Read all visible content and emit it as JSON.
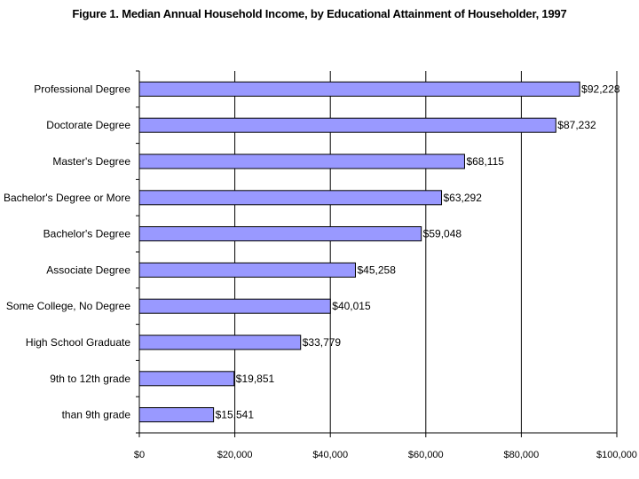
{
  "chart_data": {
    "type": "bar",
    "orientation": "horizontal",
    "title": "Figure 1. Median Annual Household Income, by Educational Attainment of Householder, 1997",
    "xlabel": "",
    "ylabel": "",
    "categories": [
      "Professional Degree",
      "Doctorate Degree",
      "Master's Degree",
      "Bachelor's Degree or More",
      "Bachelor's Degree",
      "Associate Degree",
      "Some College, No Degree",
      "High School Graduate",
      "9th to 12th grade",
      "than 9th grade"
    ],
    "values": [
      92228,
      87232,
      68115,
      63292,
      59048,
      45258,
      40015,
      33779,
      19851,
      15541
    ],
    "value_labels": [
      "$92,228",
      "$87,232",
      "$68,115",
      "$63,292",
      "$59,048",
      "$45,258",
      "$40,015",
      "$33,779",
      "$19,851",
      "$15,541"
    ],
    "xlim": [
      0,
      100000
    ],
    "x_ticks": [
      0,
      20000,
      40000,
      60000,
      80000,
      100000
    ],
    "x_tick_labels": [
      "$0",
      "$20,000",
      "$40,000",
      "$60,000",
      "$80,000",
      "$100,000"
    ],
    "grid": "vertical",
    "legend": "none",
    "colors": {
      "bar_fill": "#9999ff",
      "bar_stroke": "#000000",
      "grid": "#000000",
      "axis": "#000000"
    }
  }
}
